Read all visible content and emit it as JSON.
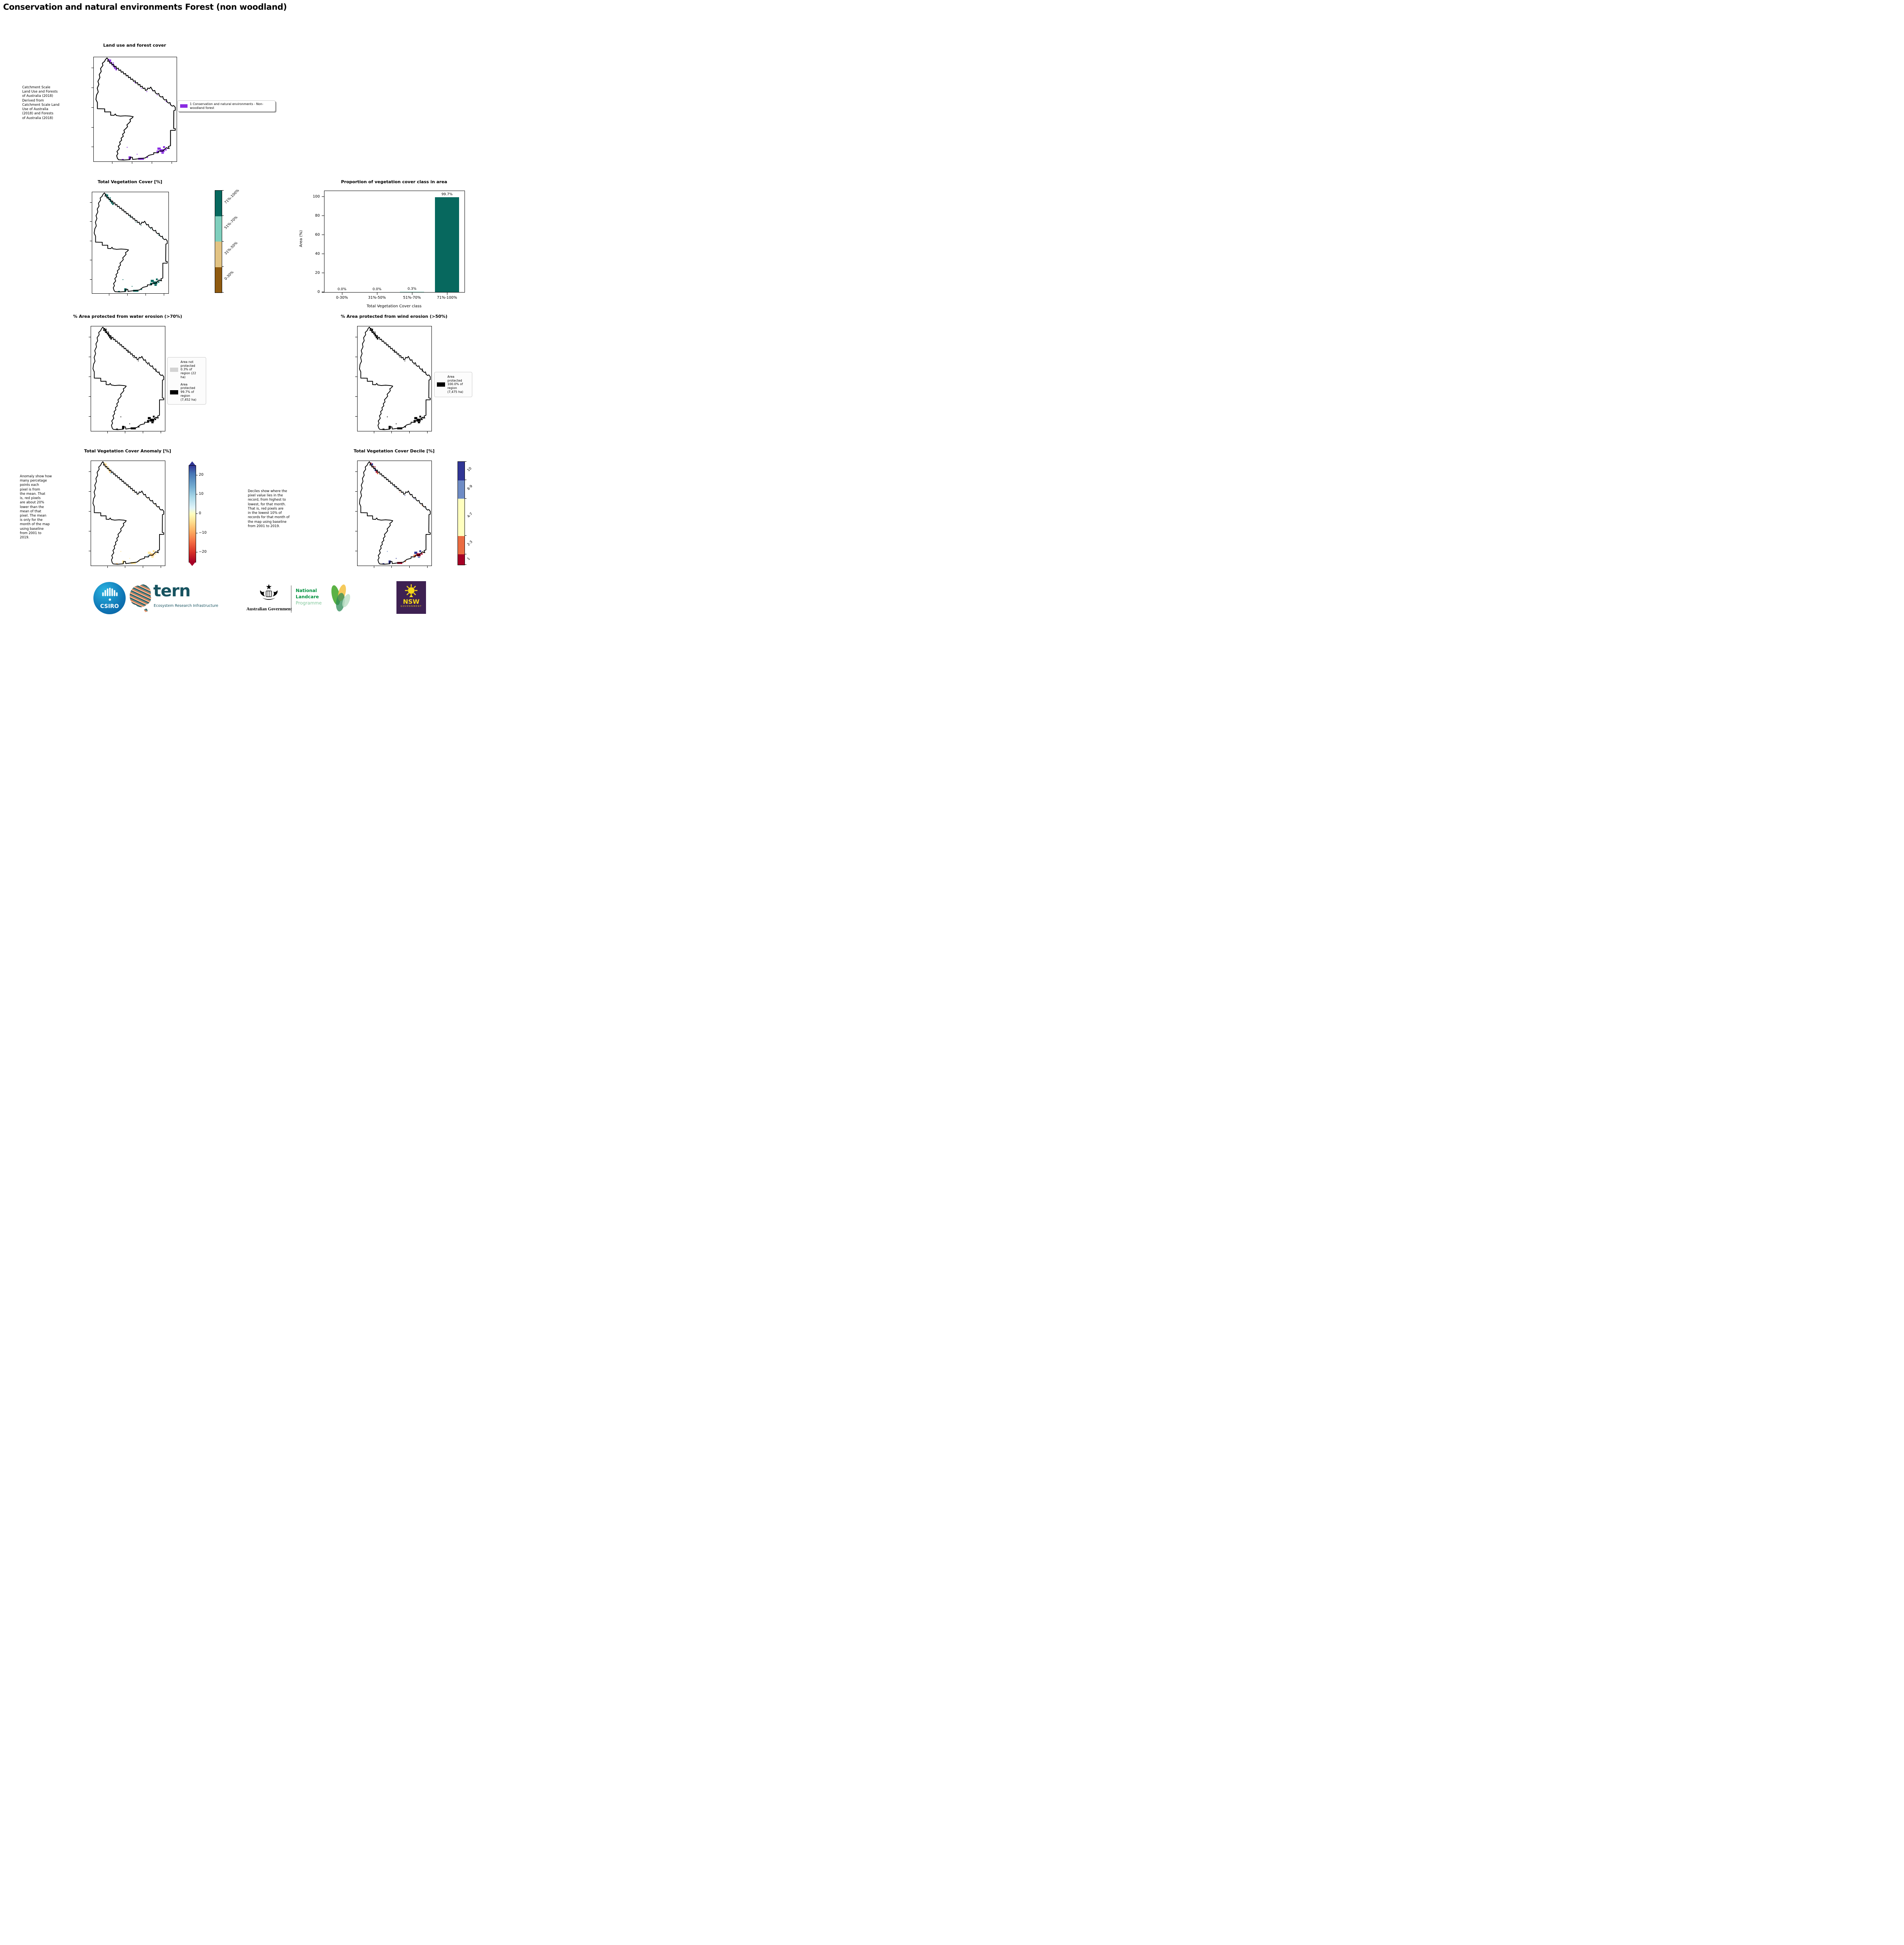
{
  "page": {
    "title": "Conservation and natural environments Forest (non woodland)"
  },
  "colors": {
    "landuse_purple": "#8a2be2",
    "veg_teal_dark": "#07685e",
    "veg_teal_light": "#7fcfbd",
    "veg_tan": "#e2c383",
    "veg_brown": "#8f5a10",
    "protected_black": "#000000",
    "not_protected_gray": "#d3d3d3",
    "anomaly_pos_blue": "#313695",
    "anomaly_neg_red": "#a50026"
  },
  "landuse": {
    "title": "Land use and forest cover",
    "note": " Catchment Scale\nLand Use and Forests\nof Australia (2018)\nDerived from\nCatchment Scale Land\nUse of Australia\n(2018) and Forests\nof Australia (2018)",
    "legend_label": "1 Conservation and natural environments - Non-\nwoodland forest"
  },
  "veg_cover": {
    "title": "Total Vegetation Cover [%]",
    "classes": [
      {
        "label": "71%-100%",
        "color": "#07685e"
      },
      {
        "label": "51%-70%",
        "color": "#7fcfbd"
      },
      {
        "label": "31%-50%",
        "color": "#e2c383"
      },
      {
        "label": "0-30%",
        "color": "#8f5a10"
      }
    ]
  },
  "chart_data": {
    "type": "bar",
    "title": "Proportion of vegetation cover class in area",
    "categories": [
      "0-30%",
      "31%-50%",
      "51%-70%",
      "71%-100%"
    ],
    "values": [
      0.0,
      0.0,
      0.3,
      99.7
    ],
    "bar_labels": [
      "0.0%",
      "0.0%",
      "0.3%",
      "99.7%"
    ],
    "bar_colors": [
      "#07685e",
      "#07685e",
      "#7fcfbd",
      "#07685e"
    ],
    "xlabel": "Total Vegetation Cover class",
    "ylabel": "Area (%)",
    "ylim": [
      0,
      106
    ],
    "yticks": [
      0,
      20,
      40,
      60,
      80,
      100
    ],
    "grid": false,
    "legend_position": "none"
  },
  "water": {
    "title": "% Area protected from water erosion (>70%)",
    "legend": [
      {
        "label": "Area not\nprotected\n0.3% of\nregion (22\nha)",
        "color": "#d3d3d3"
      },
      {
        "label": "Area\nprotected\n99.7% of\nregion\n(7,452 ha)",
        "color": "#000000"
      }
    ]
  },
  "wind": {
    "title": "% Area protected from wind erosion (>50%)",
    "legend": [
      {
        "label": "Area\nprotected\n100.0% of\nregion\n(7,475 ha)",
        "color": "#000000"
      }
    ]
  },
  "anomaly": {
    "title": "Total Vegetation Cover Anomaly [%]",
    "note": "Anomaly show how\nmany percetage\npoints each\npixel is from\nthe mean. That\nis, red pixels\nare about 20%\nlower than the\nmean of that\npixel. The mean\nis only for the\nmonth of the map\nusing baseline\nfrom 2001 to\n2019.",
    "ticks": [
      "20",
      "10",
      "0",
      "−10",
      "−20"
    ]
  },
  "decile": {
    "title": "Total Vegetation Cover Decile [%]",
    "note": "Deciles show where the\npixel value lies in the\nrecord, from highest to\nlowest, for that month.\nThat is, red pixels are\nin the lowest 10% of\nrecords for that month of\nthe map using baseline\nfrom 2001 to 2019.",
    "classes": [
      {
        "label": "10",
        "color": "#313695",
        "size": 18
      },
      {
        "label": "8-9",
        "color": "#6f8cc5",
        "size": 18
      },
      {
        "label": "4-7",
        "color": "#ffffbf",
        "size": 36
      },
      {
        "label": "2-3",
        "color": "#ea6c42",
        "size": 18
      },
      {
        "label": "1",
        "color": "#a50026",
        "size": 10
      }
    ]
  },
  "footer": {
    "csiro": "CSIRO",
    "tern": "tern",
    "tern_tagline": "Ecosystem Research Infrastructure",
    "aus_gov": "Australian Government",
    "landcare_1": "National",
    "landcare_2": "Landcare",
    "landcare_3": "Programme",
    "nsw": "NSW",
    "nsw_sub": "GOVERNMENT"
  }
}
